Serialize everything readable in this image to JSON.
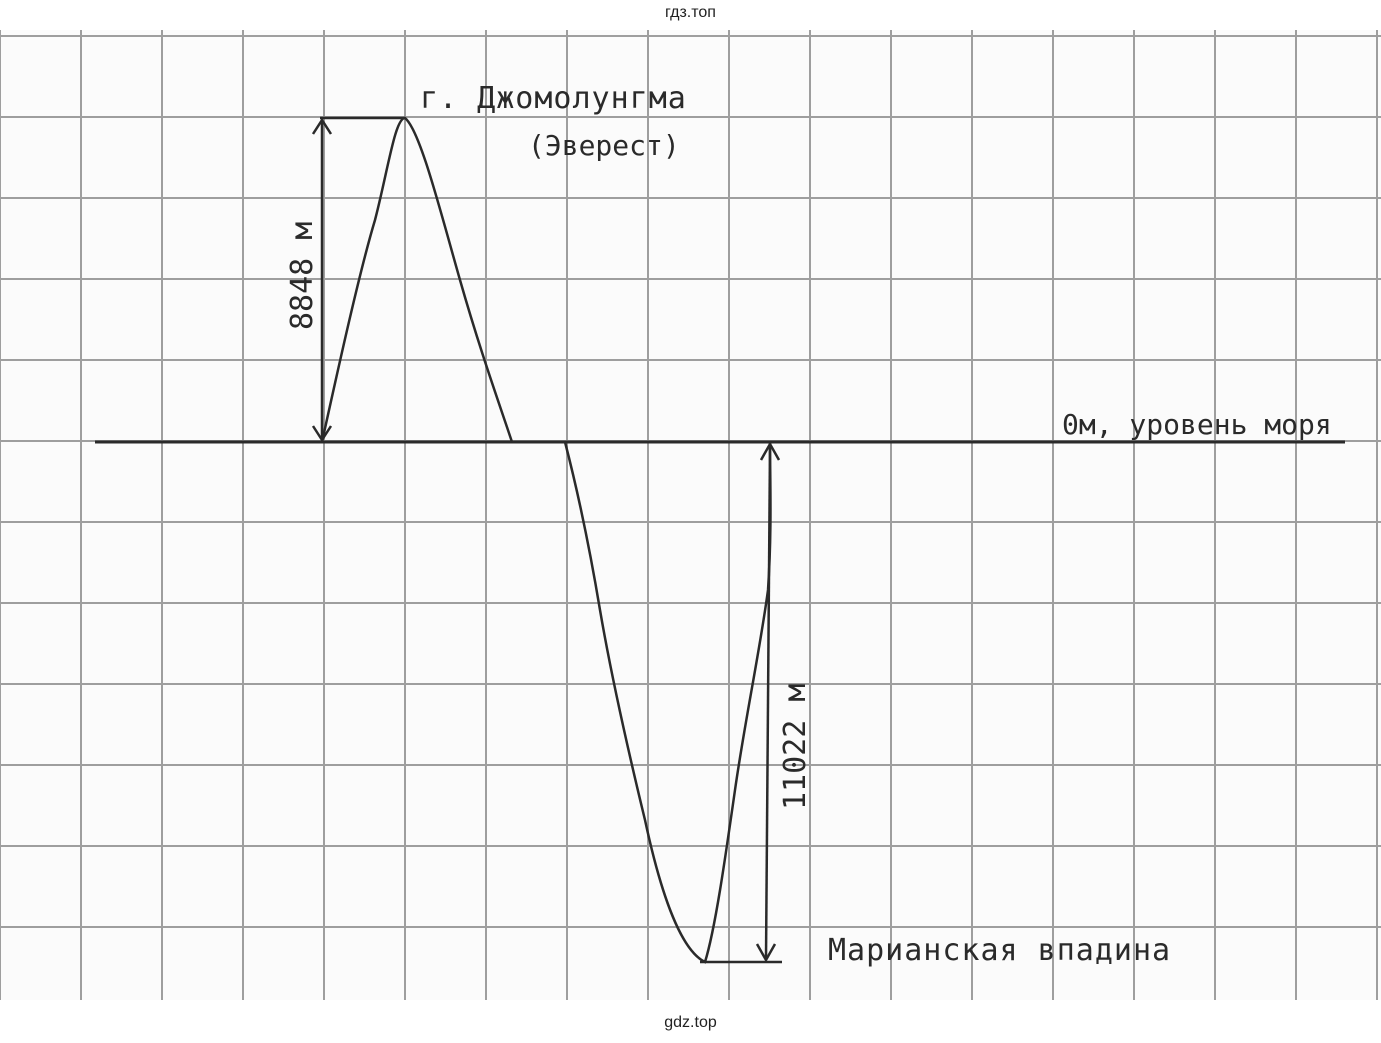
{
  "header": {
    "site_label": "гдз.топ"
  },
  "footer": {
    "site_label": "gdz.top"
  },
  "diagram": {
    "peak_label_line1": "г. Джомолунгма",
    "peak_label_line2": "(Эверест)",
    "peak_height": "8848 м",
    "sea_level_label": "0м, уровень моря",
    "trench_depth": "11022 м",
    "trench_label": "Марианская впадина"
  },
  "colors": {
    "ink": "#2a2a2a",
    "grid": "#9e9e9e",
    "paper": "#fbfbfb"
  }
}
